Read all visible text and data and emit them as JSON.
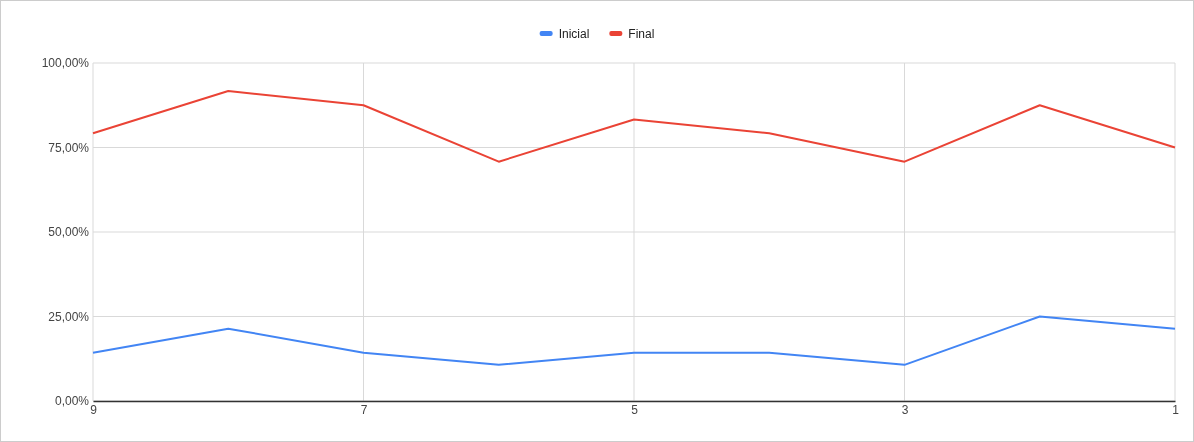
{
  "chart_data": {
    "type": "line",
    "categories": [
      "9",
      null,
      "7",
      null,
      "5",
      null,
      "3",
      null,
      "1"
    ],
    "series": [
      {
        "name": "Inicial",
        "color": "#4285f4",
        "values": [
          14.3,
          21.4,
          14.3,
          10.7,
          14.3,
          14.3,
          10.7,
          25,
          21.4
        ]
      },
      {
        "name": "Final",
        "color": "#ea4335",
        "values": [
          79.2,
          91.7,
          87.5,
          70.8,
          83.3,
          79.2,
          70.8,
          87.5,
          75
        ]
      }
    ],
    "ylim": [
      0,
      100
    ],
    "yticks": [
      {
        "value": 0,
        "label": "0,00%"
      },
      {
        "value": 25,
        "label": "25,00%"
      },
      {
        "value": 50,
        "label": "50,00%"
      },
      {
        "value": 75,
        "label": "75,00%"
      },
      {
        "value": 100,
        "label": "100,00%"
      }
    ],
    "grid": true,
    "legend": "top",
    "marker": "none",
    "line_style": "solid"
  }
}
